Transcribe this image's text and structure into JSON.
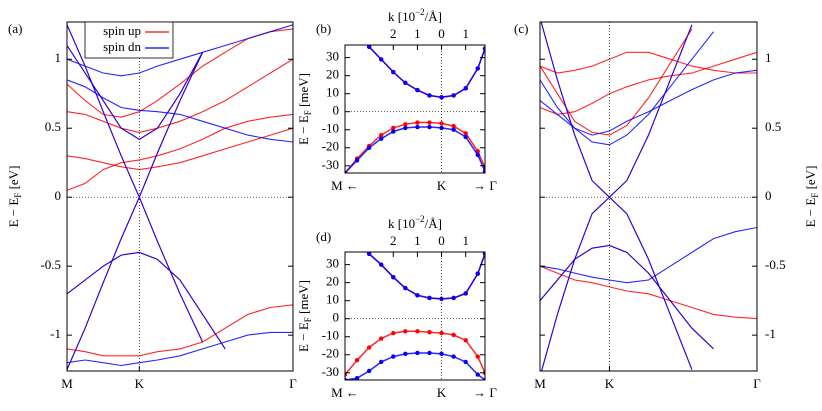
{
  "chart_data": [
    {
      "type": "line",
      "label": "(a)",
      "ylabel": {
        "main": "E − E",
        "sub": "F",
        "unit": " [eV]"
      },
      "x": [
        0,
        0.08,
        0.16,
        0.24,
        0.32,
        0.4,
        0.5,
        0.6,
        0.7,
        0.8,
        0.9,
        1
      ],
      "xlim": [
        0,
        1
      ],
      "xticks": [
        {
          "value": 0,
          "label": "M"
        },
        {
          "value": 0.32,
          "label": "K"
        },
        {
          "value": 1,
          "label": "Γ"
        }
      ],
      "ylim": [
        -1.26,
        1.27
      ],
      "yticks": [
        -1,
        -0.5,
        0,
        0.5,
        1
      ],
      "yaxis_side": "left",
      "legend": "top-left",
      "markers": false,
      "series": [
        {
          "name": "spin up",
          "color": "#ff0000",
          "bands": [
            [
              1.25,
              0.95,
              0.62,
              0.3,
              0,
              0.32,
              0.7,
              1.05,
              null,
              null,
              null,
              null
            ],
            [
              -1.25,
              -0.95,
              -0.62,
              -0.3,
              0,
              -0.32,
              -0.7,
              -1.05,
              null,
              null,
              null,
              null
            ],
            [
              1.1,
              0.9,
              0.7,
              0.5,
              0.42,
              0.5,
              0.75,
              1.05,
              null,
              null,
              null,
              null
            ],
            [
              -0.7,
              -0.6,
              -0.5,
              -0.42,
              -0.4,
              -0.45,
              -0.6,
              -0.85,
              -1.1,
              null,
              null,
              null
            ],
            [
              0.05,
              0.1,
              0.2,
              0.25,
              0.27,
              0.3,
              0.35,
              0.42,
              0.5,
              0.55,
              0.58,
              0.6
            ],
            [
              0.62,
              0.6,
              0.55,
              0.5,
              0.47,
              0.5,
              0.55,
              0.62,
              0.7,
              0.8,
              0.9,
              1.0
            ],
            [
              0.3,
              0.28,
              0.25,
              0.22,
              0.2,
              0.22,
              0.25,
              0.3,
              0.35,
              0.4,
              0.45,
              0.5
            ],
            [
              -1.1,
              -1.12,
              -1.15,
              -1.15,
              -1.15,
              -1.12,
              -1.1,
              -1.05,
              -0.95,
              -0.85,
              -0.8,
              -0.78
            ],
            [
              0.82,
              0.7,
              0.6,
              0.58,
              0.62,
              0.7,
              0.82,
              0.95,
              1.05,
              1.15,
              1.2,
              1.22
            ]
          ]
        },
        {
          "name": "spin dn",
          "color": "#0000ff",
          "bands": [
            [
              1.25,
              0.95,
              0.62,
              0.3,
              0,
              0.32,
              0.7,
              1.05,
              null,
              null,
              null,
              null
            ],
            [
              -1.25,
              -0.95,
              -0.62,
              -0.3,
              0,
              -0.32,
              -0.7,
              -1.05,
              null,
              null,
              null,
              null
            ],
            [
              1.1,
              0.9,
              0.7,
              0.5,
              0.42,
              0.5,
              0.75,
              1.05,
              null,
              null,
              null,
              null
            ],
            [
              -0.7,
              -0.6,
              -0.5,
              -0.42,
              -0.4,
              -0.45,
              -0.6,
              -0.85,
              -1.1,
              null,
              null,
              null
            ],
            [
              0.85,
              0.8,
              0.72,
              0.65,
              0.63,
              0.62,
              0.6,
              0.55,
              0.5,
              0.45,
              0.42,
              0.4
            ],
            [
              -1.2,
              -1.18,
              -1.2,
              -1.22,
              -1.2,
              -1.18,
              -1.15,
              -1.1,
              -1.05,
              -1.0,
              -0.98,
              -0.98
            ],
            [
              1.0,
              0.95,
              0.9,
              0.88,
              0.9,
              0.95,
              1.0,
              1.05,
              1.1,
              1.15,
              1.2,
              1.25
            ]
          ]
        }
      ]
    },
    {
      "type": "line",
      "label": "(b)",
      "ylabel": {
        "main": "E − E",
        "sub": "F",
        "unit": " [meV]"
      },
      "xlabel_top": {
        "main": "k [10",
        "sup": "−2",
        "unit": "/Å]"
      },
      "x": [
        -4,
        -3.5,
        -3,
        -2.5,
        -2,
        -1.5,
        -1,
        -0.5,
        0,
        0.5,
        1,
        1.5,
        1.8
      ],
      "xlim": [
        -4,
        1.8
      ],
      "xticks": [
        {
          "value": -2,
          "label": "2"
        },
        {
          "value": -1,
          "label": "1"
        },
        0,
        1
      ],
      "path_ticks": [
        {
          "value": -4,
          "label": "M ←"
        },
        {
          "value": 0,
          "label": "K"
        },
        {
          "value": 1.8,
          "label": "→ Γ"
        }
      ],
      "ylim": [
        -34,
        37
      ],
      "yticks": [
        -30,
        -20,
        -10,
        0,
        10,
        20,
        30
      ],
      "yaxis_side": "left",
      "markers": true,
      "series": [
        {
          "color": "#ff0000",
          "bands": [
            [
              null,
              null,
              36,
              29,
              22,
              16,
              12,
              9,
              8,
              9,
              13,
              24,
              35
            ],
            [
              -34,
              -26,
              -19,
              -13,
              -9,
              -7,
              -6,
              -6,
              -6.5,
              -8,
              -12,
              -22,
              -31
            ]
          ]
        },
        {
          "color": "#0000ff",
          "bands": [
            [
              null,
              null,
              36,
              29,
              22,
              16,
              12,
              9,
              8,
              9,
              13,
              24,
              35
            ],
            [
              -34,
              -27,
              -20,
              -15,
              -11,
              -9,
              -8.5,
              -8.5,
              -9,
              -10,
              -14,
              -24,
              -33
            ]
          ]
        }
      ]
    },
    {
      "type": "line",
      "label": "(c)",
      "ylabel": {
        "main": "E − E",
        "sub": "F",
        "unit": " [eV]"
      },
      "x": [
        0,
        0.08,
        0.16,
        0.24,
        0.32,
        0.4,
        0.5,
        0.6,
        0.7,
        0.8,
        0.9,
        1
      ],
      "xlim": [
        0,
        1
      ],
      "xticks": [
        {
          "value": 0,
          "label": "M"
        },
        {
          "value": 0.32,
          "label": "K"
        },
        {
          "value": 1,
          "label": "Γ"
        }
      ],
      "ylim": [
        -1.26,
        1.27
      ],
      "yticks": [
        -1,
        -0.5,
        0,
        0.5,
        1
      ],
      "yaxis_side": "right",
      "markers": false,
      "series": [
        {
          "color": "#ff0000",
          "bands": [
            [
              1.3,
              0.85,
              0.45,
              0.12,
              0,
              0.12,
              0.45,
              0.85,
              1.25,
              null,
              null,
              null
            ],
            [
              -1.3,
              -0.85,
              -0.45,
              -0.12,
              0,
              -0.12,
              -0.45,
              -0.85,
              -1.25,
              null,
              null,
              null
            ],
            [
              -0.75,
              -0.6,
              -0.45,
              -0.37,
              -0.35,
              -0.4,
              -0.55,
              -0.75,
              -0.95,
              -1.1,
              null,
              null
            ],
            [
              0.95,
              0.75,
              0.55,
              0.47,
              0.45,
              0.52,
              0.72,
              0.97,
              1.22,
              null,
              null,
              null
            ],
            [
              0.95,
              0.9,
              0.92,
              0.95,
              1.0,
              1.05,
              1.05,
              1.0,
              0.95,
              0.92,
              0.9,
              0.9
            ],
            [
              -0.5,
              -0.55,
              -0.6,
              -0.62,
              -0.65,
              -0.68,
              -0.7,
              -0.75,
              -0.8,
              -0.85,
              -0.87,
              -0.88
            ],
            [
              0.65,
              0.6,
              0.62,
              0.68,
              0.75,
              0.8,
              0.85,
              0.88,
              0.9,
              0.95,
              1.0,
              1.05
            ]
          ]
        },
        {
          "color": "#0000ff",
          "bands": [
            [
              1.3,
              0.85,
              0.45,
              0.12,
              0,
              0.12,
              0.45,
              0.85,
              1.25,
              null,
              null,
              null
            ],
            [
              -1.3,
              -0.85,
              -0.45,
              -0.12,
              0,
              -0.12,
              -0.45,
              -0.85,
              -1.25,
              null,
              null,
              null
            ],
            [
              -0.75,
              -0.6,
              -0.45,
              -0.37,
              -0.35,
              -0.4,
              -0.55,
              -0.75,
              -0.95,
              -1.1,
              null,
              null
            ],
            [
              0.85,
              0.65,
              0.5,
              0.4,
              0.38,
              0.45,
              0.6,
              0.8,
              1.0,
              1.2,
              null,
              null
            ],
            [
              -0.5,
              -0.52,
              -0.55,
              -0.58,
              -0.6,
              -0.62,
              -0.6,
              -0.5,
              -0.4,
              -0.3,
              -0.25,
              -0.22
            ],
            [
              0.7,
              0.6,
              0.5,
              0.45,
              0.48,
              0.55,
              0.62,
              0.7,
              0.78,
              0.85,
              0.9,
              0.92
            ]
          ]
        }
      ]
    },
    {
      "type": "line",
      "label": "(d)",
      "ylabel": {
        "main": "E − E",
        "sub": "F",
        "unit": " [meV]"
      },
      "xlabel_top": {
        "main": "k [10",
        "sup": "−2",
        "unit": "/Å]"
      },
      "x": [
        -4,
        -3.5,
        -3,
        -2.5,
        -2,
        -1.5,
        -1,
        -0.5,
        0,
        0.5,
        1,
        1.5,
        1.8
      ],
      "xlim": [
        -4,
        1.8
      ],
      "xticks": [
        {
          "value": -2,
          "label": "2"
        },
        {
          "value": -1,
          "label": "1"
        },
        0,
        1
      ],
      "path_ticks": [
        {
          "value": -4,
          "label": "M ←"
        },
        {
          "value": 0,
          "label": "K"
        },
        {
          "value": 1.8,
          "label": "→ Γ"
        }
      ],
      "ylim": [
        -34,
        37
      ],
      "yticks": [
        -30,
        -20,
        -10,
        0,
        10,
        20,
        30
      ],
      "yaxis_side": "left",
      "markers": true,
      "series": [
        {
          "color": "#ff0000",
          "bands": [
            [
              null,
              null,
              36,
              30,
              23,
              17,
              13,
              11.5,
              11,
              11.5,
              14,
              25,
              36
            ],
            [
              -31,
              -23,
              -16,
              -11,
              -8,
              -7,
              -7,
              -7.5,
              -8,
              -9,
              -12,
              -21,
              -30
            ]
          ]
        },
        {
          "color": "#0000ff",
          "bands": [
            [
              null,
              null,
              36,
              30,
              23,
              17,
              13,
              11.5,
              11,
              11.5,
              14,
              25,
              36
            ],
            [
              -34,
              -33,
              -29,
              -24,
              -21,
              -19.5,
              -19,
              -19,
              -19.5,
              -21,
              -24,
              -31,
              -34
            ]
          ]
        }
      ]
    }
  ]
}
